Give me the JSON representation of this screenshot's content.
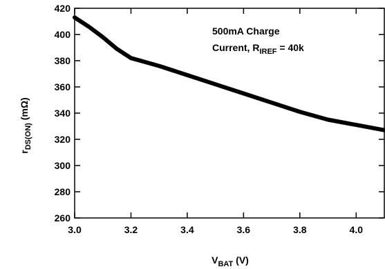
{
  "chart_data": {
    "type": "line",
    "title": "",
    "xlabel": {
      "main": "V",
      "sub": "BAT",
      "rest": " (V)"
    },
    "ylabel": {
      "main": "r",
      "sub": "DS(ON)",
      "rest": " (mΩ)"
    },
    "xlim": [
      3.0,
      4.1
    ],
    "ylim": [
      260,
      420
    ],
    "xticks": [
      3.0,
      3.2,
      3.4,
      3.6,
      3.8,
      4.0
    ],
    "xtick_labels": [
      "3.0",
      "3.2",
      "3.4",
      "3.6",
      "3.8",
      "4.0"
    ],
    "yticks": [
      260,
      280,
      300,
      320,
      340,
      360,
      380,
      400,
      420
    ],
    "ytick_labels": [
      "260",
      "280",
      "300",
      "320",
      "340",
      "360",
      "380",
      "400",
      "420"
    ],
    "grid": false,
    "annotation": {
      "line1": "500mA Charge",
      "line2_main": "Current, R",
      "line2_sub": "IREF",
      "line2_rest": " = 40k"
    },
    "series": [
      {
        "x": [
          3.0,
          3.05,
          3.1,
          3.15,
          3.2,
          3.25,
          3.3,
          3.4,
          3.5,
          3.6,
          3.7,
          3.8,
          3.9,
          4.0,
          4.1
        ],
        "y": [
          413,
          406,
          398,
          389,
          382,
          379,
          376,
          369,
          362,
          355,
          348,
          341,
          335,
          331,
          327
        ],
        "color": "#000000"
      }
    ]
  }
}
